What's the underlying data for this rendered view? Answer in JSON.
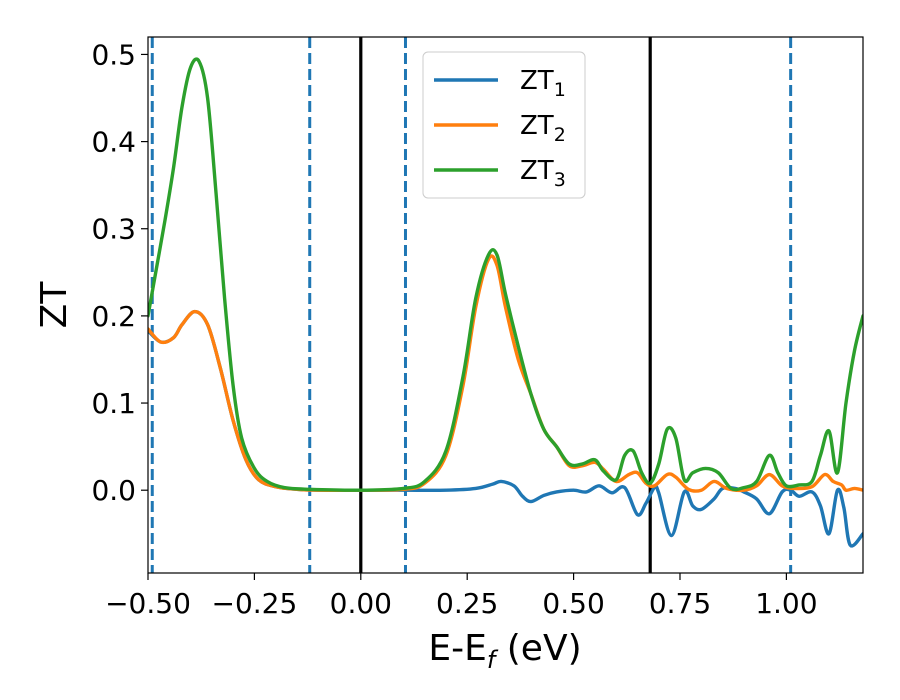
{
  "chart_data": {
    "type": "line",
    "xlabel": {
      "main": "E-E",
      "sub": "f",
      "tail": " (eV)"
    },
    "ylabel": "ZT",
    "xlim": [
      -0.5,
      1.18
    ],
    "ylim": [
      -0.095,
      0.52
    ],
    "xticks": [
      -0.5,
      -0.25,
      0.0,
      0.25,
      0.5,
      0.75,
      1.0
    ],
    "xtick_labels": [
      "−0.50",
      "−0.25",
      "0.00",
      "0.25",
      "0.50",
      "0.75",
      "1.00"
    ],
    "yticks": [
      0.0,
      0.1,
      0.2,
      0.3,
      0.4,
      0.5
    ],
    "ytick_labels": [
      "0.0",
      "0.1",
      "0.2",
      "0.3",
      "0.4",
      "0.5"
    ],
    "grid": false,
    "legend_position": "top-center",
    "vlines": [
      {
        "x": -0.49,
        "style": "dashed",
        "color": "#1f77b4"
      },
      {
        "x": -0.12,
        "style": "dashed",
        "color": "#1f77b4"
      },
      {
        "x": 0.0,
        "style": "solid",
        "color": "#000000"
      },
      {
        "x": 0.105,
        "style": "dashed",
        "color": "#1f77b4"
      },
      {
        "x": 0.68,
        "style": "solid",
        "color": "#000000"
      },
      {
        "x": 1.01,
        "style": "dashed",
        "color": "#1f77b4"
      }
    ],
    "series": [
      {
        "name": {
          "main": "ZT",
          "sub": "1"
        },
        "color": "#1f77b4",
        "points": [
          [
            -0.5,
            0.183
          ],
          [
            -0.47,
            0.17
          ],
          [
            -0.44,
            0.175
          ],
          [
            -0.42,
            0.19
          ],
          [
            -0.39,
            0.205
          ],
          [
            -0.36,
            0.19
          ],
          [
            -0.33,
            0.14
          ],
          [
            -0.3,
            0.08
          ],
          [
            -0.27,
            0.035
          ],
          [
            -0.24,
            0.012
          ],
          [
            -0.2,
            0.004
          ],
          [
            -0.15,
            0.001
          ],
          [
            -0.1,
            0.0
          ],
          [
            0.0,
            0.0
          ],
          [
            0.1,
            0.0
          ],
          [
            0.2,
            0.0
          ],
          [
            0.27,
            0.002
          ],
          [
            0.31,
            0.007
          ],
          [
            0.33,
            0.01
          ],
          [
            0.36,
            0.005
          ],
          [
            0.38,
            -0.007
          ],
          [
            0.4,
            -0.013
          ],
          [
            0.43,
            -0.006
          ],
          [
            0.46,
            -0.002
          ],
          [
            0.5,
            0.0
          ],
          [
            0.53,
            -0.002
          ],
          [
            0.56,
            0.005
          ],
          [
            0.59,
            -0.003
          ],
          [
            0.62,
            0.003
          ],
          [
            0.65,
            -0.028
          ],
          [
            0.67,
            -0.015
          ],
          [
            0.69,
            0.003
          ],
          [
            0.7,
            -0.003
          ],
          [
            0.73,
            -0.052
          ],
          [
            0.76,
            -0.002
          ],
          [
            0.78,
            -0.018
          ],
          [
            0.8,
            -0.022
          ],
          [
            0.83,
            -0.01
          ],
          [
            0.85,
            0.002
          ],
          [
            0.88,
            0.002
          ],
          [
            0.9,
            -0.002
          ],
          [
            0.93,
            -0.01
          ],
          [
            0.96,
            -0.027
          ],
          [
            0.99,
            -0.002
          ],
          [
            1.01,
            0.0
          ],
          [
            1.03,
            -0.007
          ],
          [
            1.06,
            -0.002
          ],
          [
            1.08,
            -0.018
          ],
          [
            1.1,
            -0.05
          ],
          [
            1.12,
            0.0
          ],
          [
            1.135,
            -0.02
          ],
          [
            1.15,
            -0.063
          ],
          [
            1.18,
            -0.05
          ]
        ]
      },
      {
        "name": {
          "main": "ZT",
          "sub": "2"
        },
        "color": "#ff7f0e",
        "points": [
          [
            -0.5,
            0.185
          ],
          [
            -0.47,
            0.17
          ],
          [
            -0.44,
            0.175
          ],
          [
            -0.42,
            0.19
          ],
          [
            -0.39,
            0.205
          ],
          [
            -0.36,
            0.19
          ],
          [
            -0.33,
            0.14
          ],
          [
            -0.3,
            0.08
          ],
          [
            -0.27,
            0.035
          ],
          [
            -0.24,
            0.012
          ],
          [
            -0.2,
            0.004
          ],
          [
            -0.15,
            0.001
          ],
          [
            -0.1,
            0.0
          ],
          [
            0.0,
            0.0
          ],
          [
            0.1,
            0.001
          ],
          [
            0.15,
            0.008
          ],
          [
            0.2,
            0.04
          ],
          [
            0.24,
            0.12
          ],
          [
            0.27,
            0.21
          ],
          [
            0.3,
            0.265
          ],
          [
            0.32,
            0.258
          ],
          [
            0.34,
            0.21
          ],
          [
            0.37,
            0.15
          ],
          [
            0.4,
            0.11
          ],
          [
            0.43,
            0.07
          ],
          [
            0.46,
            0.05
          ],
          [
            0.49,
            0.028
          ],
          [
            0.52,
            0.028
          ],
          [
            0.55,
            0.032
          ],
          [
            0.57,
            0.024
          ],
          [
            0.6,
            0.01
          ],
          [
            0.63,
            0.018
          ],
          [
            0.65,
            0.02
          ],
          [
            0.67,
            0.008
          ],
          [
            0.69,
            0.005
          ],
          [
            0.72,
            0.018
          ],
          [
            0.74,
            0.015
          ],
          [
            0.77,
            0.001
          ],
          [
            0.8,
            0.0
          ],
          [
            0.83,
            0.01
          ],
          [
            0.86,
            0.002
          ],
          [
            0.9,
            0.0
          ],
          [
            0.93,
            0.005
          ],
          [
            0.96,
            0.018
          ],
          [
            0.99,
            0.005
          ],
          [
            1.02,
            0.002
          ],
          [
            1.06,
            0.004
          ],
          [
            1.09,
            0.018
          ],
          [
            1.11,
            0.01
          ],
          [
            1.13,
            0.006
          ],
          [
            1.14,
            0.0
          ],
          [
            1.16,
            0.002
          ],
          [
            1.18,
            0.0
          ]
        ]
      },
      {
        "name": {
          "main": "ZT",
          "sub": "3"
        },
        "color": "#2ca02c",
        "points": [
          [
            -0.5,
            0.2
          ],
          [
            -0.48,
            0.255
          ],
          [
            -0.46,
            0.31
          ],
          [
            -0.44,
            0.37
          ],
          [
            -0.42,
            0.44
          ],
          [
            -0.4,
            0.485
          ],
          [
            -0.38,
            0.492
          ],
          [
            -0.36,
            0.45
          ],
          [
            -0.34,
            0.34
          ],
          [
            -0.32,
            0.22
          ],
          [
            -0.3,
            0.12
          ],
          [
            -0.28,
            0.06
          ],
          [
            -0.25,
            0.025
          ],
          [
            -0.22,
            0.01
          ],
          [
            -0.18,
            0.003
          ],
          [
            -0.12,
            0.001
          ],
          [
            0.0,
            0.0
          ],
          [
            0.1,
            0.002
          ],
          [
            0.15,
            0.01
          ],
          [
            0.2,
            0.045
          ],
          [
            0.24,
            0.13
          ],
          [
            0.27,
            0.22
          ],
          [
            0.3,
            0.27
          ],
          [
            0.32,
            0.27
          ],
          [
            0.34,
            0.225
          ],
          [
            0.37,
            0.165
          ],
          [
            0.4,
            0.11
          ],
          [
            0.43,
            0.07
          ],
          [
            0.46,
            0.05
          ],
          [
            0.49,
            0.03
          ],
          [
            0.52,
            0.03
          ],
          [
            0.55,
            0.035
          ],
          [
            0.57,
            0.022
          ],
          [
            0.6,
            0.012
          ],
          [
            0.62,
            0.04
          ],
          [
            0.64,
            0.045
          ],
          [
            0.66,
            0.02
          ],
          [
            0.68,
            0.008
          ],
          [
            0.7,
            0.03
          ],
          [
            0.72,
            0.07
          ],
          [
            0.74,
            0.06
          ],
          [
            0.76,
            0.012
          ],
          [
            0.78,
            0.02
          ],
          [
            0.81,
            0.025
          ],
          [
            0.84,
            0.02
          ],
          [
            0.87,
            0.002
          ],
          [
            0.9,
            0.003
          ],
          [
            0.93,
            0.01
          ],
          [
            0.96,
            0.04
          ],
          [
            0.98,
            0.02
          ],
          [
            1.0,
            0.005
          ],
          [
            1.03,
            0.006
          ],
          [
            1.06,
            0.01
          ],
          [
            1.08,
            0.04
          ],
          [
            1.1,
            0.068
          ],
          [
            1.12,
            0.02
          ],
          [
            1.14,
            0.1
          ],
          [
            1.16,
            0.16
          ],
          [
            1.18,
            0.2
          ]
        ]
      }
    ]
  }
}
